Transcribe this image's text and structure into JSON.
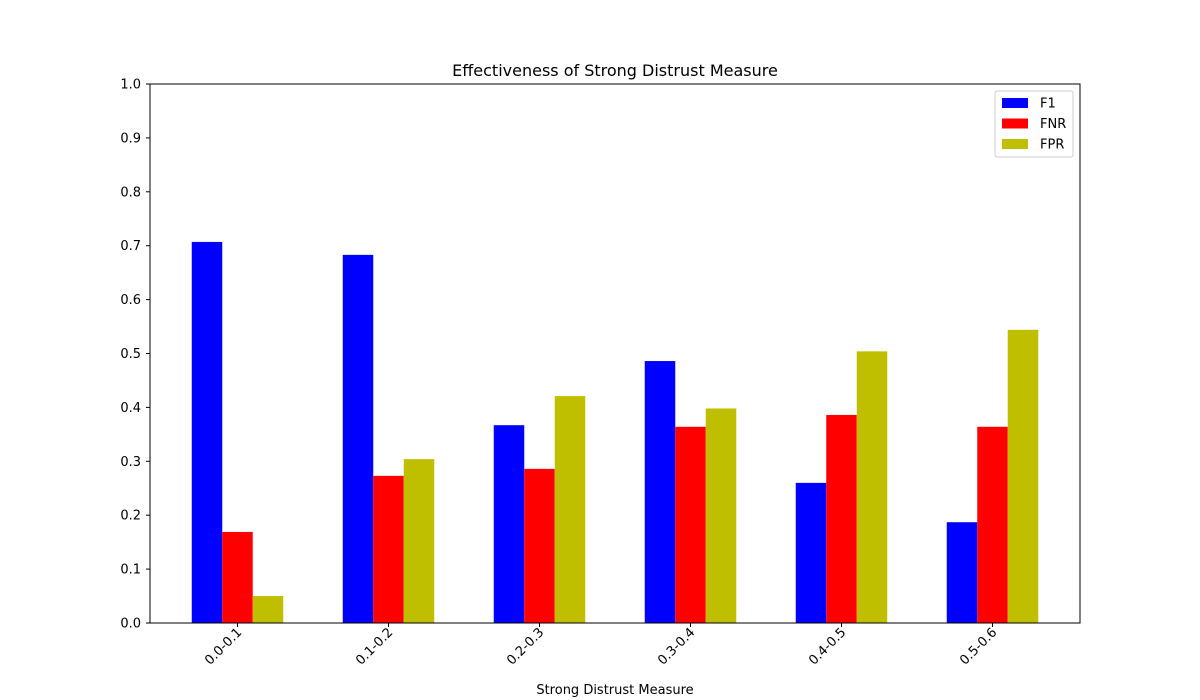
{
  "chart_data": {
    "type": "bar",
    "title": "Effectiveness of Strong Distrust Measure",
    "xlabel": "Strong Distrust Measure",
    "ylabel": "",
    "ylim": [
      0,
      1.0
    ],
    "yticks": [
      "0.0",
      "0.1",
      "0.2",
      "0.3",
      "0.4",
      "0.5",
      "0.6",
      "0.7",
      "0.8",
      "0.9",
      "1.0"
    ],
    "categories": [
      "0.0-0.1",
      "0.1-0.2",
      "0.2-0.3",
      "0.3-0.4",
      "0.4-0.5",
      "0.5-0.6"
    ],
    "series": [
      {
        "name": "F1",
        "color": "#0000ff",
        "values": [
          0.707,
          0.683,
          0.367,
          0.486,
          0.26,
          0.187
        ]
      },
      {
        "name": "FNR",
        "color": "#ff0000",
        "values": [
          0.169,
          0.273,
          0.286,
          0.364,
          0.386,
          0.364
        ]
      },
      {
        "name": "FPR",
        "color": "#bfbf00",
        "values": [
          0.05,
          0.304,
          0.421,
          0.398,
          0.504,
          0.544
        ]
      }
    ],
    "legend_position": "top-right",
    "grid": false
  }
}
